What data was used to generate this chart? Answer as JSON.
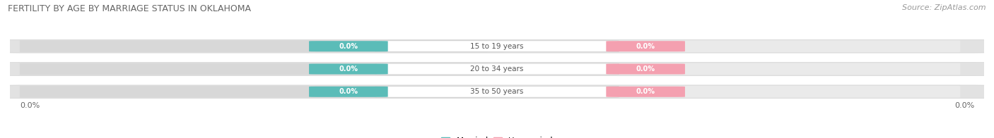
{
  "title": "FERTILITY BY AGE BY MARRIAGE STATUS IN OKLAHOMA",
  "source": "Source: ZipAtlas.com",
  "age_groups": [
    "15 to 19 years",
    "20 to 34 years",
    "35 to 50 years"
  ],
  "married_values": [
    0.0,
    0.0,
    0.0
  ],
  "unmarried_values": [
    0.0,
    0.0,
    0.0
  ],
  "married_color": "#5bbcb8",
  "unmarried_color": "#f4a0b0",
  "bar_bg_left": "#e0e0e0",
  "bar_bg_right": "#ebebeb",
  "title_fontsize": 9,
  "source_fontsize": 8,
  "label_fontsize": 7.5,
  "badge_fontsize": 7,
  "axis_label_fontsize": 8,
  "legend_fontsize": 8.5,
  "left_label": "0.0%",
  "right_label": "0.0%",
  "background_color": "#ffffff"
}
